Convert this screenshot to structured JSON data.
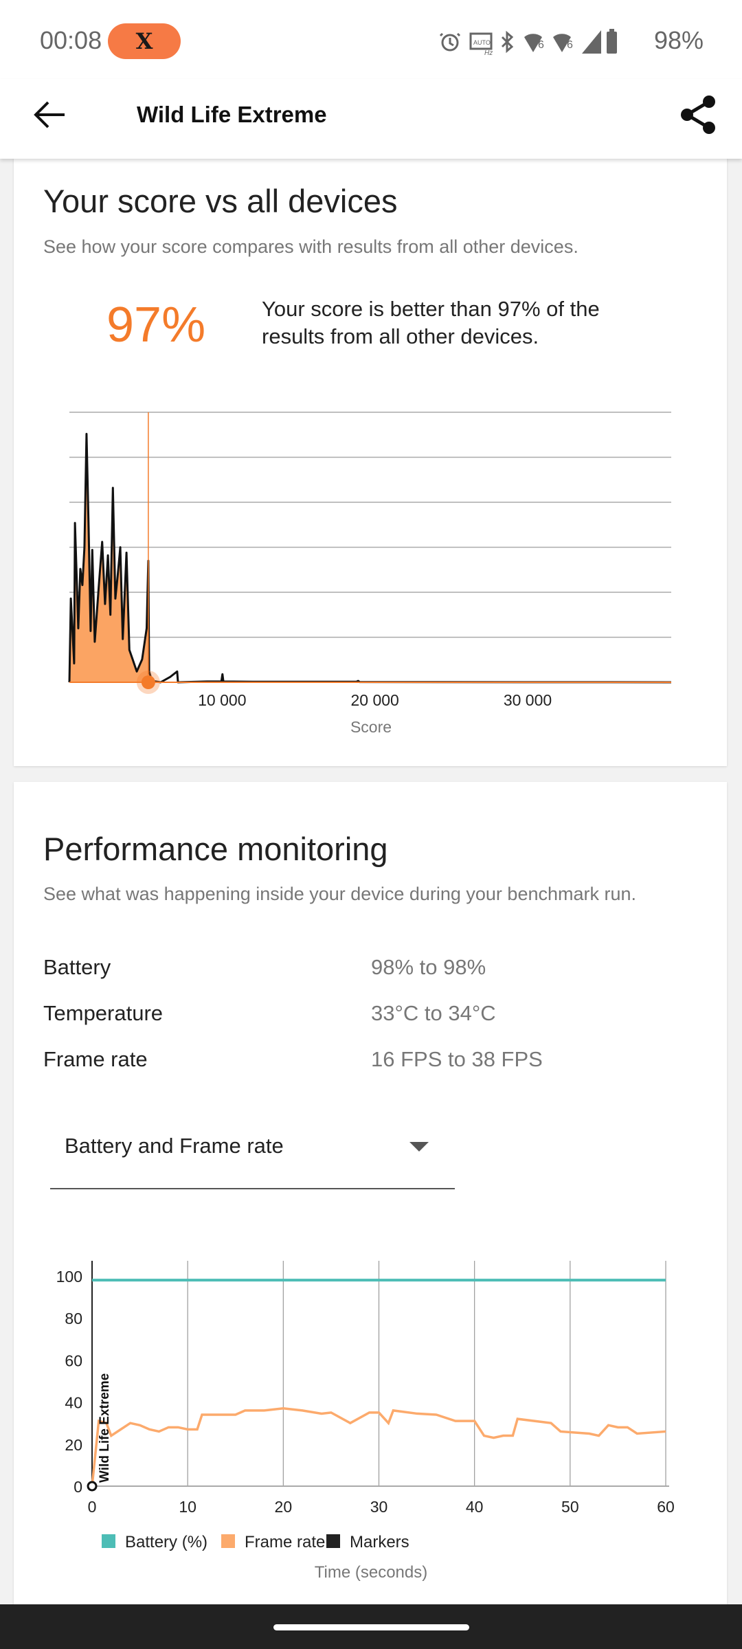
{
  "status_bar": {
    "time": "00:08",
    "app_badge": "X",
    "battery": "98%",
    "icons": [
      "alarm-icon",
      "auto-hz-icon",
      "bluetooth-icon",
      "wifi-6-icon",
      "wifi-6-icon",
      "cell-signal-icon",
      "battery-icon"
    ]
  },
  "app_bar": {
    "title": "Wild Life Extreme",
    "back_icon": "arrow-left-icon",
    "share_icon": "share-icon"
  },
  "score_card": {
    "heading": "Your score vs all devices",
    "subtitle": "See how your score compares with results from all other devices.",
    "percentile": "97%",
    "description_line1": "Your score is better than 97% of the",
    "description_line2": "results from all other devices."
  },
  "chart_data": [
    {
      "type": "area",
      "xlabel": "Score",
      "x_ticks": [
        "10 000",
        "20 000",
        "30 000"
      ],
      "x_tick_values": [
        10000,
        20000,
        30000
      ],
      "xlim": [
        0,
        39400
      ],
      "ylim": [
        0,
        1
      ],
      "grid": true,
      "your_score": 5167,
      "colors": {
        "fill": "#fba463",
        "line": "#111111",
        "marker": "#f47b2a"
      },
      "points": [
        [
          0,
          0
        ],
        [
          95,
          0.31
        ],
        [
          311,
          0.07
        ],
        [
          365,
          0.59
        ],
        [
          581,
          0.2
        ],
        [
          716,
          0.42
        ],
        [
          851,
          0.36
        ],
        [
          986,
          0.5
        ],
        [
          1121,
          0.92
        ],
        [
          1256,
          0.58
        ],
        [
          1390,
          0.19
        ],
        [
          1499,
          0.49
        ],
        [
          1660,
          0.15
        ],
        [
          1930,
          0.36
        ],
        [
          2146,
          0.52
        ],
        [
          2334,
          0.29
        ],
        [
          2523,
          0.47
        ],
        [
          2685,
          0.25
        ],
        [
          2847,
          0.72
        ],
        [
          3009,
          0.31
        ],
        [
          3170,
          0.4
        ],
        [
          3332,
          0.5
        ],
        [
          3494,
          0.16
        ],
        [
          3737,
          0.48
        ],
        [
          3926,
          0.12
        ],
        [
          4141,
          0.085
        ],
        [
          4411,
          0.04
        ],
        [
          4762,
          0.085
        ],
        [
          5059,
          0.2
        ],
        [
          5167,
          0.45
        ],
        [
          5220,
          0.04
        ],
        [
          5400,
          0.005
        ],
        [
          5975,
          0.0
        ],
        [
          6600,
          0.02
        ],
        [
          7055,
          0.04
        ],
        [
          7108,
          0.0
        ],
        [
          9000,
          0.003
        ],
        [
          9950,
          0.003
        ],
        [
          10020,
          0.03
        ],
        [
          10080,
          0.003
        ],
        [
          12000,
          0.002
        ],
        [
          18800,
          0.002
        ],
        [
          18900,
          0.005
        ],
        [
          19000,
          0.001
        ],
        [
          39400,
          0
        ]
      ]
    },
    {
      "type": "line",
      "xlabel": "Time (seconds)",
      "x_ticks": [
        0,
        10,
        20,
        30,
        40,
        50,
        60
      ],
      "y_ticks": [
        0,
        20,
        40,
        60,
        80,
        100
      ],
      "xlim": [
        0,
        60
      ],
      "ylim": [
        0,
        100
      ],
      "grid": true,
      "legend_position": "bottom",
      "marker_label": "Wild Life Extreme",
      "series": [
        {
          "name": "Battery (%)",
          "color": "#4dbdb6",
          "points": [
            [
              0,
              98
            ],
            [
              60,
              98
            ]
          ]
        },
        {
          "name": "Frame rate",
          "color": "#fcaa6c",
          "points": [
            [
              0,
              0
            ],
            [
              0.7,
              31
            ],
            [
              1.5,
              30
            ],
            [
              2,
              24
            ],
            [
              3,
              27
            ],
            [
              4,
              30
            ],
            [
              5,
              29
            ],
            [
              6,
              27
            ],
            [
              7,
              26
            ],
            [
              8,
              28
            ],
            [
              9,
              28
            ],
            [
              10,
              27
            ],
            [
              11,
              27
            ],
            [
              11.5,
              34
            ],
            [
              15,
              34
            ],
            [
              16,
              36
            ],
            [
              18,
              36
            ],
            [
              20,
              37
            ],
            [
              22,
              36
            ],
            [
              24,
              34.5
            ],
            [
              25,
              35
            ],
            [
              27,
              30
            ],
            [
              29,
              35
            ],
            [
              30,
              35
            ],
            [
              31,
              30
            ],
            [
              31.5,
              36
            ],
            [
              34,
              34.5
            ],
            [
              36,
              34
            ],
            [
              38,
              31
            ],
            [
              40,
              31
            ],
            [
              41,
              24
            ],
            [
              42,
              23
            ],
            [
              43,
              24
            ],
            [
              44,
              24
            ],
            [
              44.5,
              32
            ],
            [
              48,
              30
            ],
            [
              49,
              26
            ],
            [
              52,
              25
            ],
            [
              53,
              24
            ],
            [
              54,
              29
            ],
            [
              55,
              28
            ],
            [
              56,
              28
            ],
            [
              57,
              25
            ],
            [
              60,
              26
            ]
          ]
        },
        {
          "name": "Markers",
          "color": "#222222",
          "points": [
            [
              0,
              0
            ]
          ]
        }
      ]
    }
  ],
  "performance_card": {
    "heading": "Performance monitoring",
    "subtitle": "See what was happening inside your device during your benchmark run.",
    "rows": [
      {
        "label": "Battery",
        "value": "98% to 98%"
      },
      {
        "label": "Temperature",
        "value": "33°C to 34°C"
      },
      {
        "label": "Frame rate",
        "value": "16 FPS to 38 FPS"
      }
    ],
    "dropdown": {
      "selected": "Battery and Frame rate",
      "icon": "caret-down-icon"
    }
  }
}
